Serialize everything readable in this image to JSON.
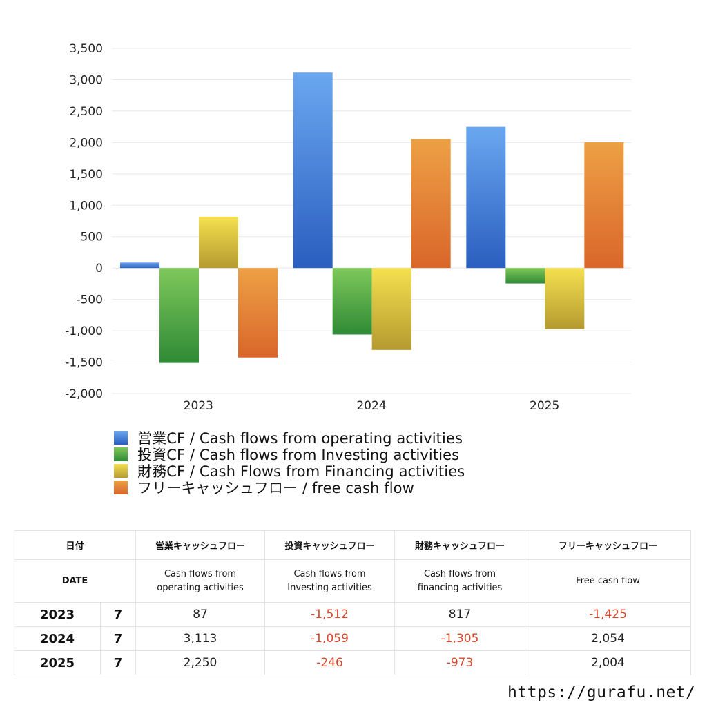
{
  "chart_data": {
    "type": "bar",
    "categories": [
      "2023",
      "2024",
      "2025"
    ],
    "ylim": [
      -2000,
      3500
    ],
    "yticks": [
      3500,
      3000,
      2500,
      2000,
      1500,
      1000,
      500,
      0,
      -500,
      -1000,
      -1500,
      -2000
    ],
    "ytick_labels": [
      "3,500",
      "3,000",
      "2,500",
      "2,000",
      "1,500",
      "1,000",
      "500",
      "0",
      "-500",
      "-1,000",
      "-1,500",
      "-2,000"
    ],
    "grid": true,
    "legend_position": "bottom",
    "series": [
      {
        "name": "営業CF / Cash flows from operating activities",
        "values": [
          87,
          3113,
          2250
        ],
        "color_top": "#6aa7f0",
        "color_bottom": "#2a5ebf"
      },
      {
        "name": "投資CF / Cash flows from Investing activities",
        "values": [
          -1512,
          -1059,
          -246
        ],
        "color_top": "#7ec85a",
        "color_bottom": "#2f8a36"
      },
      {
        "name": "財務CF / Cash Flows from Financing activities",
        "values": [
          817,
          -1305,
          -973
        ],
        "color_top": "#f5e04f",
        "color_bottom": "#b59a2f"
      },
      {
        "name": "フリーキャッシュフロー / free cash flow",
        "values": [
          -1425,
          2054,
          2004
        ],
        "color_top": "#eda045",
        "color_bottom": "#d9662a"
      }
    ]
  },
  "table": {
    "header": {
      "date": "日付",
      "operating": "営業キャッシュフロー",
      "investing": "投資キャッシュフロー",
      "financing": "財務キャッシュフロー",
      "free": "フリーキャッシュフロー"
    },
    "subheader": {
      "date": "DATE",
      "operating_line1": "Cash flows from",
      "operating_line2": "operating activities",
      "investing_line1": "Cash flows from",
      "investing_line2": "Investing activities",
      "financing_line1": "Cash flows from",
      "financing_line2": "financing activities",
      "free": "Free cash flow"
    },
    "rows": [
      {
        "year": "2023",
        "month": "7",
        "operating": "87",
        "investing": "-1,512",
        "financing": "817",
        "free": "-1,425"
      },
      {
        "year": "2024",
        "month": "7",
        "operating": "3,113",
        "investing": "-1,059",
        "financing": "-1,305",
        "free": "2,054"
      },
      {
        "year": "2025",
        "month": "7",
        "operating": "2,250",
        "investing": "-246",
        "financing": "-973",
        "free": "2,004"
      }
    ]
  },
  "footer": {
    "url": "https://gurafu.net/"
  }
}
